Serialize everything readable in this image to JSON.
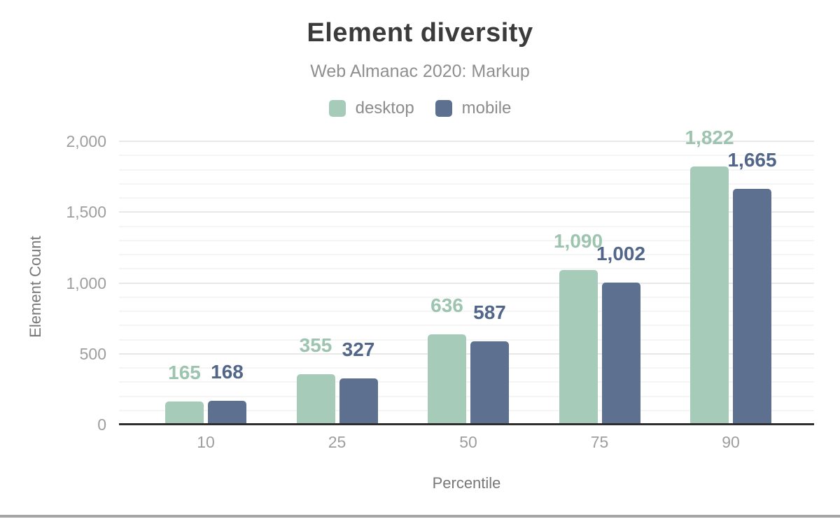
{
  "header": {
    "title": "Element diversity",
    "subtitle": "Web Almanac 2020: Markup"
  },
  "legend": {
    "items": [
      {
        "label": "desktop",
        "color": "#a7cbb9"
      },
      {
        "label": "mobile",
        "color": "#5e7090"
      }
    ]
  },
  "chart_data": {
    "type": "bar",
    "title": "Element diversity",
    "subtitle": "Web Almanac 2020: Markup",
    "categories": [
      "10",
      "25",
      "50",
      "75",
      "90"
    ],
    "series": [
      {
        "name": "desktop",
        "color": "#a7cbb9",
        "label_color": "#9dc4af",
        "values": [
          165,
          355,
          636,
          1090,
          1822
        ],
        "value_labels": [
          "165",
          "355",
          "636",
          "1,090",
          "1,822"
        ]
      },
      {
        "name": "mobile",
        "color": "#5e7090",
        "label_color": "#516689",
        "values": [
          168,
          327,
          587,
          1002,
          1665
        ],
        "value_labels": [
          "168",
          "327",
          "587",
          "1,002",
          "1,665"
        ]
      }
    ],
    "xlabel": "Percentile",
    "ylabel": "Element Count",
    "ylim": [
      0,
      2000
    ],
    "yticks": [
      0,
      500,
      1000,
      1500,
      2000
    ],
    "ytick_labels": [
      "0",
      "500",
      "1,000",
      "1,500",
      "2,000"
    ],
    "grid": {
      "show": true,
      "major_step": 500,
      "minor_step": 100
    },
    "legend_position": "top",
    "colors": {
      "title": "#3b3b3b",
      "subtitle": "#8f8f8f",
      "tick_labels": "#9e9e9e",
      "axis_titles": "#787878",
      "axis_line": "#2e2e2e",
      "major_grid": "#e8e8e8",
      "minor_grid": "#f5f5f5"
    }
  }
}
